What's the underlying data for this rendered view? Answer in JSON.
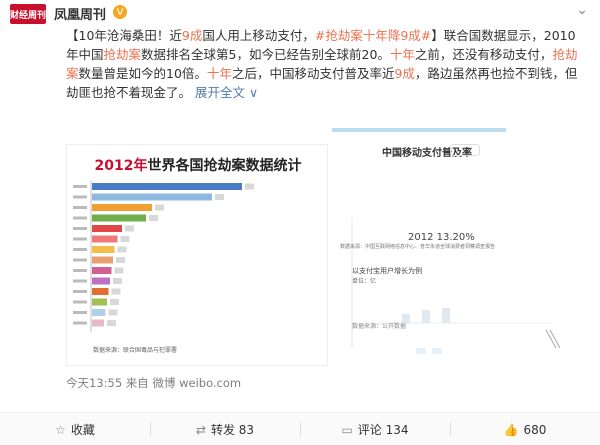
{
  "header": {
    "logo_text": "财经周刊",
    "account_name": "凤凰周刊",
    "verified_mark": "V",
    "menu_chevron": "⌄"
  },
  "post": {
    "p1": "【10年沧海桑田！近",
    "p2": "9成",
    "p3": "国人用上移动支付，",
    "tag": "#抢劫案十年降9成#",
    "p4": "】联合国数据显示，2010年中国",
    "p5": "抢劫案",
    "p6": "数据排名全球第5，如今已经告别全球前20。",
    "p7": "十年",
    "p8": "之前，还没有移动支付，",
    "p9": "抢劫案",
    "p10": "数量曾是如今的10倍。",
    "p11": "十年",
    "p12": "之后，中国移动支付普及率近",
    "p13": "9成",
    "p14": "，路边虽然再也捡不到钱，但劫匪也抢不着现金了。",
    "more": "展开全文",
    "more_chev": "∨"
  },
  "left_image": {
    "title_year": "2012年",
    "title_rest": "世界各国抢劫案数据统计",
    "source": "数据来源：联合国毒品与犯罪署"
  },
  "chart_data": {
    "type": "bar",
    "title": "2012年世界各国抢劫案数据统计",
    "categories": [
      "",
      "",
      "",
      "",
      "",
      "",
      "",
      "",
      "",
      "",
      "",
      "",
      "",
      ""
    ],
    "values": [
      100,
      80,
      40,
      36,
      20,
      17,
      15,
      14,
      13,
      12,
      11,
      10,
      9,
      8
    ],
    "colors": [
      "#4a7bc8",
      "#8fb8e0",
      "#f0a030",
      "#6fae4a",
      "#e04848",
      "#f07878",
      "#f2c04a",
      "#e8a070",
      "#d06090",
      "#c070c0",
      "#e07030",
      "#a0c050",
      "#b0d0e8",
      "#e8b8c8"
    ]
  },
  "right_image": {
    "title": "中国移动支付普及率",
    "stat": "2012  13.20%",
    "subtitle": "数据来源：中国互联网络信息中心、普华永道全球消费者洞察调查报告",
    "label1": "以支付宝用户增长为例",
    "label2": "单位：亿",
    "source": "数据来源：公开数据"
  },
  "meta": {
    "time_label": "今天13:55  来自 微博 weibo.com"
  },
  "actions": {
    "collect": "收藏",
    "repost": "转发 83",
    "comment": "评论 134",
    "like": "680"
  }
}
